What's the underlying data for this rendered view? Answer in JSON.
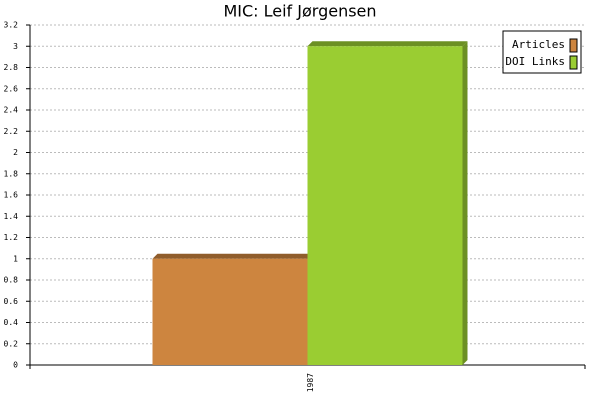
{
  "chart_data": {
    "type": "bar",
    "title": "MIC: Leif Jørgensen",
    "categories": [
      "1987"
    ],
    "series": [
      {
        "name": "Articles",
        "color": "#cd853f",
        "values": [
          1
        ]
      },
      {
        "name": "DOI Links",
        "color": "#9acd32",
        "values": [
          3
        ]
      }
    ],
    "ylim": [
      0,
      3.2
    ],
    "yticks": [
      0,
      0.2,
      0.4,
      0.6,
      0.8,
      1,
      1.2,
      1.4,
      1.6,
      1.8,
      2,
      2.2,
      2.4,
      2.6,
      2.8,
      3,
      3.2
    ],
    "grid": true,
    "legend": "top-right"
  }
}
